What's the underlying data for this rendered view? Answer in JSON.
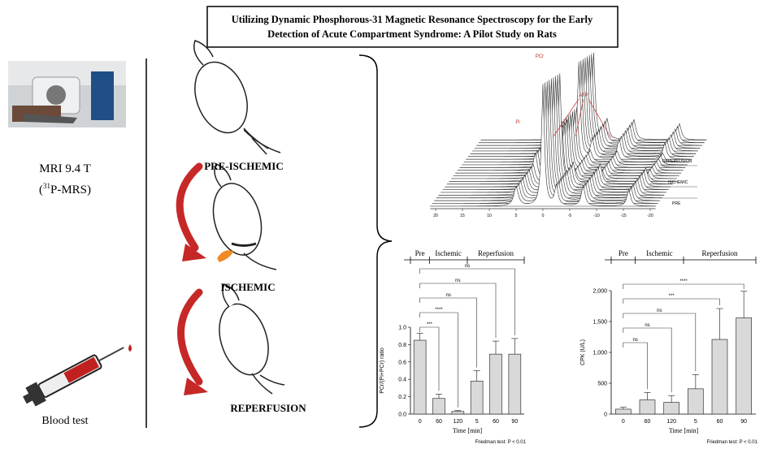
{
  "header": {
    "title_lines": [
      "Utilizing Dynamic Phosphorous-31 Magnetic Resonance Spectroscopy for the Early",
      "Detection of Acute Compartment Syndrome: A Pilot Study on Rats"
    ]
  },
  "mri": {
    "label": "MRI 9.4 T",
    "technique_parts": [
      "(",
      "31",
      "P-MRS)"
    ]
  },
  "blood": {
    "label": "Blood test"
  },
  "stages": [
    "PRE-ISCHEMIC",
    "ISCHEMIC",
    "REPERFUSION"
  ],
  "spectrum": {
    "peak_labels": {
      "pcr": "PCr",
      "pi": "Pi",
      "atp": "ATP"
    },
    "condition_labels": [
      "REPERFUSION",
      "ISCHEMIC",
      "PRE"
    ],
    "xticks": [
      20,
      15,
      10,
      5,
      0,
      -5,
      -10,
      -15,
      -20
    ]
  },
  "chart_data": [
    {
      "type": "bar",
      "phases": [
        "Pre",
        "Ischemic",
        "Reperfusion"
      ],
      "categories": [
        "0",
        "60",
        "120",
        "5",
        "60",
        "90"
      ],
      "values": [
        0.85,
        0.18,
        0.03,
        0.38,
        0.69,
        0.69
      ],
      "errors": [
        0.08,
        0.05,
        0.01,
        0.12,
        0.15,
        0.18
      ],
      "ylim": [
        0,
        1
      ],
      "yticks": [
        {
          "value": 0,
          "label": "0.0"
        },
        0.2,
        0.4,
        0.6,
        0.8,
        {
          "value": 1,
          "label": "1.0"
        }
      ],
      "y_label": "PCr/(Pi+PCr) ratio",
      "x_label": "Time [min]",
      "significance": [
        "***",
        "****",
        "ns",
        "ns",
        "ns"
      ],
      "note": "Friedman test: P < 0.01",
      "color": "#d9d9d9"
    },
    {
      "type": "bar",
      "phases": [
        "Pre",
        "Ischemic",
        "Reperfusion"
      ],
      "categories": [
        "0",
        "60",
        "120",
        "5",
        "60",
        "90"
      ],
      "values": [
        80,
        230,
        190,
        410,
        1210,
        1560
      ],
      "errors": [
        30,
        120,
        110,
        230,
        500,
        430
      ],
      "ylim": [
        0,
        2000
      ],
      "yticks": [
        0,
        500,
        {
          "value": 1000,
          "label": "1,000"
        },
        {
          "value": 1500,
          "label": "1,500"
        },
        {
          "value": 2000,
          "label": "2,000"
        }
      ],
      "y_label": "CPK (U/L)",
      "x_label": "Time [min]",
      "significance": [
        "ns",
        "ns",
        "ns",
        "***",
        "****"
      ],
      "note": "Friedman test: P < 0.01",
      "color": "#d9d9d9"
    }
  ]
}
